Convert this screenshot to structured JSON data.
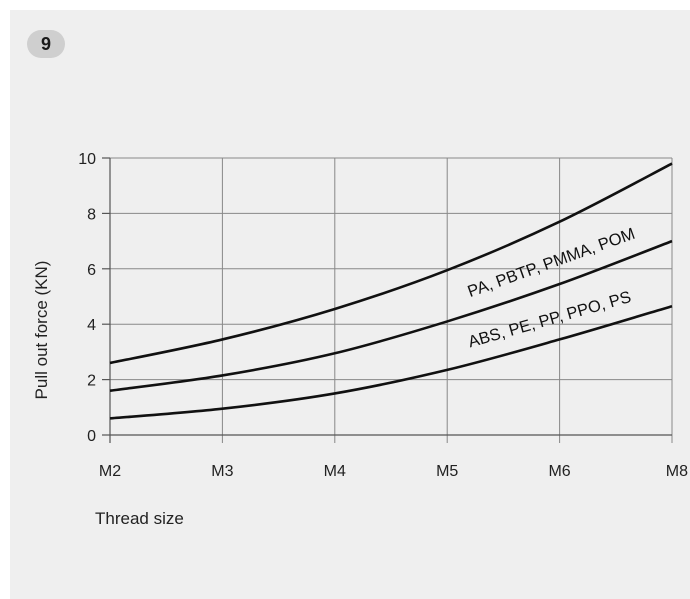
{
  "figure_number": "9",
  "chart_data": {
    "type": "line",
    "xlabel": "Thread size",
    "ylabel": "Pull out force (KN)",
    "categories": [
      "M2",
      "M3",
      "M4",
      "M5",
      "M6",
      "M8"
    ],
    "ylim": [
      0,
      10
    ],
    "yticks": [
      0,
      2,
      4,
      6,
      8,
      10
    ],
    "grid": true,
    "series": [
      {
        "name": "",
        "values": [
          2.6,
          3.45,
          4.55,
          5.95,
          7.7,
          9.8
        ]
      },
      {
        "name": "PA, PBTP, PMMA, POM",
        "values": [
          1.6,
          2.15,
          2.95,
          4.1,
          5.45,
          7.0
        ]
      },
      {
        "name": "ABS, PE, PP, PPO, PS",
        "values": [
          0.6,
          0.95,
          1.5,
          2.35,
          3.45,
          4.65
        ]
      }
    ],
    "colors": {
      "line": "#111111",
      "grid": "#888888"
    }
  }
}
